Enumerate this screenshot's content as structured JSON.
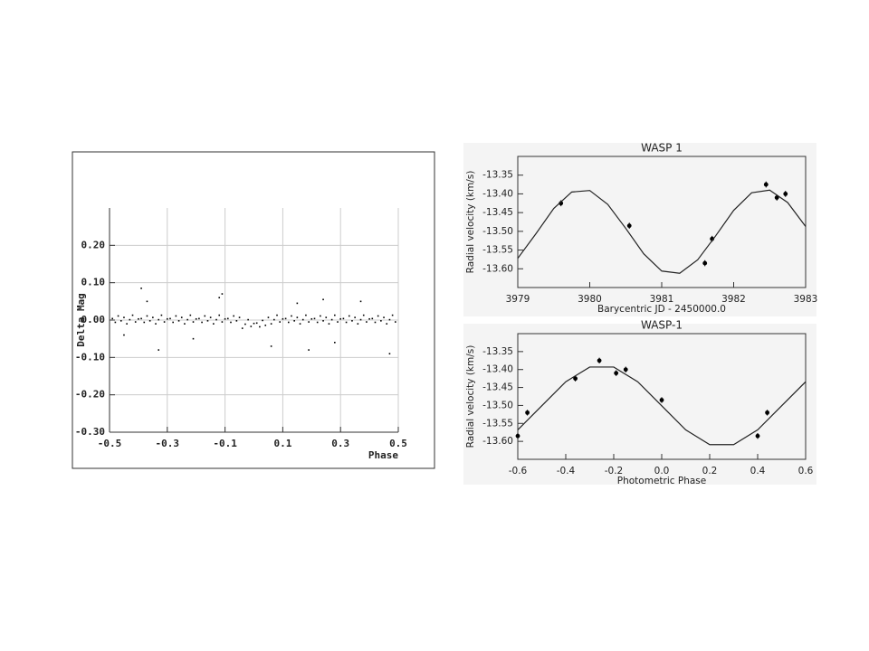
{
  "chart_data": [
    {
      "type": "scatter",
      "xlabel": "Phase",
      "ylabel": "Delta Mag",
      "color": "#000000",
      "grid": true,
      "xlim": [
        -0.5,
        0.5
      ],
      "ylim": [
        -0.3,
        0.3
      ],
      "xticks": [
        -0.5,
        -0.3,
        -0.1,
        0.1,
        0.3,
        0.5
      ],
      "yticks": [
        {
          "value": 0.2,
          "label": "0.20"
        },
        {
          "value": 0.1,
          "label": "0.10"
        },
        {
          "value": 0,
          "label": "0.00"
        },
        {
          "value": -0.1,
          "label": "-0.10"
        },
        {
          "value": -0.2,
          "label": "-0.20"
        },
        {
          "value": -0.3,
          "label": "-0.30"
        }
      ],
      "x": [
        -0.49,
        -0.48,
        -0.47,
        -0.46,
        -0.45,
        -0.44,
        -0.43,
        -0.42,
        -0.41,
        -0.4,
        -0.39,
        -0.38,
        -0.37,
        -0.36,
        -0.35,
        -0.34,
        -0.33,
        -0.32,
        -0.31,
        -0.3,
        -0.29,
        -0.28,
        -0.27,
        -0.26,
        -0.25,
        -0.24,
        -0.23,
        -0.22,
        -0.21,
        -0.2,
        -0.19,
        -0.18,
        -0.17,
        -0.16,
        -0.15,
        -0.14,
        -0.13,
        -0.12,
        -0.11,
        -0.1,
        -0.09,
        -0.08,
        -0.07,
        -0.06,
        -0.05,
        -0.04,
        -0.03,
        -0.02,
        -0.01,
        0,
        0.01,
        0.02,
        0.03,
        0.04,
        0.05,
        0.06,
        0.07,
        0.08,
        0.09,
        0.1,
        0.11,
        0.12,
        0.13,
        0.14,
        0.15,
        0.16,
        0.17,
        0.18,
        0.19,
        0.2,
        0.21,
        0.22,
        0.23,
        0.24,
        0.25,
        0.26,
        0.27,
        0.28,
        0.29,
        0.3,
        0.31,
        0.32,
        0.33,
        0.34,
        0.35,
        0.36,
        0.37,
        0.38,
        0.39,
        0.4,
        0.41,
        0.42,
        0.43,
        0.44,
        0.45,
        0.46,
        0.47,
        0.48,
        0.49,
        -0.39,
        -0.37,
        -0.33,
        -0.11,
        -0.12,
        0.06,
        0.19,
        0.24,
        0.28,
        0.37,
        0.47,
        -0.45,
        0.15,
        -0.21
      ],
      "values": [
        0.004,
        -0.006,
        0.011,
        -0.002,
        0.007,
        -0.01,
        0.001,
        0.013,
        -0.005,
        0.003,
        0.004,
        -0.006,
        0.011,
        -0.002,
        0.007,
        -0.01,
        0.001,
        0.013,
        -0.005,
        0.003,
        0.004,
        -0.006,
        0.011,
        -0.002,
        0.007,
        -0.01,
        0.001,
        0.013,
        -0.005,
        0.003,
        0.004,
        -0.006,
        0.011,
        -0.002,
        0.007,
        -0.01,
        0.001,
        0.013,
        -0.005,
        0.003,
        0.004,
        -0.006,
        0.011,
        -0.002,
        0.007,
        -0.022,
        -0.011,
        0.001,
        -0.017,
        -0.009,
        -0.008,
        -0.018,
        -0.001,
        -0.014,
        0.007,
        -0.01,
        0.001,
        0.013,
        -0.005,
        0.003,
        0.004,
        -0.006,
        0.011,
        -0.002,
        0.007,
        -0.01,
        0.001,
        0.013,
        -0.005,
        0.003,
        0.004,
        -0.006,
        0.011,
        -0.002,
        0.007,
        -0.01,
        0.001,
        0.013,
        -0.005,
        0.003,
        0.004,
        -0.006,
        0.011,
        -0.002,
        0.007,
        -0.01,
        0.001,
        0.013,
        -0.005,
        0.003,
        0.004,
        -0.006,
        0.011,
        -0.002,
        0.007,
        -0.01,
        0.001,
        0.013,
        -0.005,
        0.085,
        0.05,
        -0.08,
        0.07,
        0.06,
        -0.07,
        -0.08,
        0.055,
        -0.06,
        0.05,
        -0.09,
        -0.04,
        0.045,
        -0.05
      ]
    },
    {
      "type": "scatter",
      "title": "WASP 1",
      "xlabel": "Barycentric JD - 2450000.0",
      "ylabel": "Radial velocity (km/s)",
      "xlim": [
        3979,
        3983
      ],
      "ylim": [
        -13.65,
        -13.3
      ],
      "xticks": [
        3979,
        3980,
        3981,
        3982,
        3983
      ],
      "yticks": [
        -13.35,
        {
          "value": -13.4,
          "label": "-13.40"
        },
        -13.45,
        {
          "value": -13.5,
          "label": "-13.50"
        },
        -13.55,
        {
          "value": -13.6,
          "label": "-13.60"
        }
      ],
      "series": [
        {
          "color": "#000000",
          "x": [
            3979.6,
            3980.55,
            3981.6,
            3981.7,
            3982.45,
            3982.6,
            3982.72
          ],
          "values": [
            -13.425,
            -13.485,
            -13.585,
            -13.52,
            -13.375,
            -13.41,
            -13.4
          ],
          "errors": [
            0.008,
            0.008,
            0.008,
            0.008,
            0.008,
            0.008,
            0.008
          ]
        },
        {
          "color": "#222222",
          "line": true,
          "x": [
            3979,
            3979.25,
            3979.5,
            3979.75,
            3980,
            3980.25,
            3980.5,
            3980.75,
            3981,
            3981.25,
            3981.5,
            3981.75,
            3982,
            3982.25,
            3982.5,
            3982.75,
            3983
          ],
          "values": [
            -13.572,
            -13.507,
            -13.439,
            -13.395,
            -13.391,
            -13.428,
            -13.492,
            -13.56,
            -13.606,
            -13.612,
            -13.576,
            -13.512,
            -13.444,
            -13.397,
            -13.39,
            -13.423,
            -13.487
          ]
        }
      ]
    },
    {
      "type": "scatter",
      "title": "WASP-1",
      "xlabel": "Photometric Phase",
      "ylabel": "Radial velocity (km/s)",
      "xlim": [
        -0.6,
        0.6
      ],
      "ylim": [
        -13.65,
        -13.3
      ],
      "xticks": [
        -0.6,
        -0.4,
        -0.2,
        {
          "value": 0,
          "label": "0.0"
        },
        0.2,
        0.4,
        0.6
      ],
      "yticks": [
        -13.35,
        {
          "value": -13.4,
          "label": "-13.40"
        },
        -13.45,
        {
          "value": -13.5,
          "label": "-13.50"
        },
        -13.55,
        {
          "value": -13.6,
          "label": "-13.60"
        }
      ],
      "series": [
        {
          "color": "#000000",
          "x": [
            -0.6,
            -0.56,
            -0.36,
            -0.26,
            -0.19,
            -0.15,
            0,
            0.4,
            0.44
          ],
          "values": [
            -13.585,
            -13.52,
            -13.425,
            -13.375,
            -13.41,
            -13.4,
            -13.485,
            -13.585,
            -13.52
          ],
          "errors": [
            0.008,
            0.008,
            0.008,
            0.008,
            0.008,
            0.008,
            0.008,
            0.008,
            0.008
          ]
        },
        {
          "color": "#222222",
          "line": true,
          "x": [
            -0.6,
            -0.5,
            -0.4,
            -0.3,
            -0.2,
            -0.1,
            0,
            0.1,
            0.2,
            0.3,
            0.4,
            0.5,
            0.6
          ],
          "values": [
            -13.568,
            -13.501,
            -13.434,
            -13.393,
            -13.393,
            -13.434,
            -13.501,
            -13.568,
            -13.609,
            -13.609,
            -13.568,
            -13.501,
            -13.434
          ]
        }
      ]
    }
  ]
}
